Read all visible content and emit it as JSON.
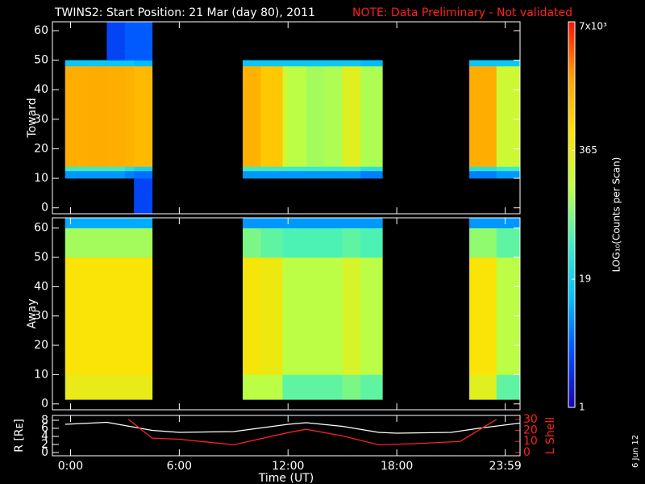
{
  "title": "TWINS2: Start Position: 21 Mar (day  80), 2011",
  "note": "NOTE: Data Preliminary - Not validated",
  "stamp": "6 Jun 12",
  "colorbar": {
    "label": "LOG₁₀(Counts per Scan)",
    "lim": [
      1,
      7000
    ],
    "log": true,
    "ticks": [
      {
        "value": 7000,
        "label": "7x10³"
      },
      365,
      19,
      1
    ],
    "colormap": [
      "#1a00b0",
      "#0050ff",
      "#00c0ff",
      "#40f0c0",
      "#c0ff40",
      "#ffe000",
      "#ffa000",
      "#ff1000"
    ]
  },
  "chart_data": [
    {
      "type": "heatmap",
      "ylabel": "Toward",
      "xlim": [
        -1,
        24.8
      ],
      "ylim": [
        -2,
        63
      ],
      "yticks": [
        0,
        10,
        20,
        30,
        40,
        50,
        60
      ],
      "x_edges": [
        -0.3,
        1,
        2,
        3,
        3.5,
        4.5,
        9.5,
        10.5,
        11.7,
        12,
        13,
        14,
        15,
        16,
        17.2,
        22,
        23.5,
        24.8
      ],
      "y_edges": [
        -2,
        10,
        12.5,
        14,
        48,
        50,
        63
      ],
      "values": [
        [
          null,
          8,
          40,
          1500,
          15,
          null
        ],
        [
          null,
          8,
          40,
          1600,
          15,
          null
        ],
        [
          null,
          8,
          40,
          1500,
          15,
          3
        ],
        [
          null,
          6,
          30,
          1400,
          15,
          4
        ],
        [
          3,
          5,
          20,
          1200,
          12,
          4
        ],
        [
          null,
          null,
          null,
          null,
          null,
          null
        ],
        [
          null,
          8,
          40,
          1400,
          15,
          null
        ],
        [
          null,
          8,
          40,
          900,
          15,
          null
        ],
        [
          null,
          8,
          40,
          200,
          15,
          null
        ],
        [
          null,
          8,
          40,
          150,
          15,
          null
        ],
        [
          null,
          8,
          40,
          120,
          15,
          null
        ],
        [
          null,
          8,
          40,
          130,
          15,
          null
        ],
        [
          null,
          8,
          40,
          300,
          15,
          null
        ],
        [
          null,
          6,
          30,
          130,
          12,
          null
        ],
        [
          null,
          null,
          null,
          null,
          null,
          null
        ],
        [
          null,
          6,
          30,
          1500,
          15,
          null
        ],
        [
          null,
          8,
          40,
          200,
          15,
          null
        ]
      ]
    },
    {
      "type": "heatmap",
      "ylabel": "Away",
      "xlim": [
        -1,
        24.8
      ],
      "ylim": [
        -2,
        63.5
      ],
      "yticks": [
        0,
        10,
        20,
        30,
        40,
        50,
        60
      ],
      "x_edges": [
        -0.3,
        1,
        2,
        3,
        3.5,
        4.5,
        9.5,
        10.5,
        11.7,
        12,
        13,
        14,
        15,
        16,
        17.2,
        22,
        23.5,
        24.8
      ],
      "y_edges": [
        -2,
        1.5,
        10,
        50,
        60,
        63.5
      ],
      "values": [
        [
          null,
          350,
          500,
          120,
          10
        ],
        [
          null,
          350,
          500,
          120,
          10
        ],
        [
          null,
          350,
          500,
          120,
          10
        ],
        [
          null,
          350,
          500,
          120,
          10
        ],
        [
          null,
          350,
          500,
          120,
          10
        ],
        [
          null,
          null,
          null,
          null,
          null
        ],
        [
          null,
          150,
          450,
          80,
          8
        ],
        [
          null,
          150,
          400,
          60,
          8
        ],
        [
          null,
          60,
          150,
          50,
          8
        ],
        [
          null,
          60,
          150,
          50,
          8
        ],
        [
          null,
          60,
          150,
          50,
          8
        ],
        [
          null,
          60,
          150,
          50,
          8
        ],
        [
          null,
          80,
          250,
          60,
          8
        ],
        [
          null,
          60,
          150,
          50,
          8
        ],
        [
          null,
          null,
          null,
          null,
          null
        ],
        [
          null,
          300,
          500,
          100,
          8
        ],
        [
          null,
          60,
          150,
          60,
          8
        ]
      ]
    },
    {
      "type": "line",
      "xlabel": "Time (UT)",
      "xlim": [
        -1,
        24.8
      ],
      "xticks": [
        {
          "value": 0,
          "label": "0:00"
        },
        {
          "value": 6,
          "label": "6:00"
        },
        {
          "value": 12,
          "label": "12:00"
        },
        {
          "value": 18,
          "label": "18:00"
        },
        {
          "value": 23.983,
          "label": "23:59"
        }
      ],
      "ylabel": "R [Rᴇ]",
      "ylim": [
        -0.8,
        9.2
      ],
      "yticks": [
        0,
        2,
        4,
        6,
        8
      ],
      "y2label": "L Shell",
      "y2lim": [
        -3,
        33.6
      ],
      "y2ticks": [
        0,
        10,
        20,
        30
      ],
      "series": [
        {
          "color": "#ffffff",
          "x": [
            -0.3,
            2,
            4.5,
            6,
            9,
            12,
            13,
            15,
            17,
            18,
            21,
            22.5,
            24.8
          ],
          "values": [
            7,
            7.5,
            5.5,
            5,
            5.2,
            7,
            7.4,
            6.5,
            5,
            4.8,
            5,
            6,
            7.3
          ]
        },
        {
          "color": "#ff2020",
          "axis": "y2",
          "x": [
            3.2,
            4.5,
            6,
            9,
            12,
            13,
            15,
            17,
            19,
            21.5,
            22.5,
            23.5
          ],
          "values": [
            30,
            13,
            12,
            7,
            18,
            21,
            15,
            7,
            8,
            10,
            20,
            30
          ]
        }
      ]
    }
  ]
}
